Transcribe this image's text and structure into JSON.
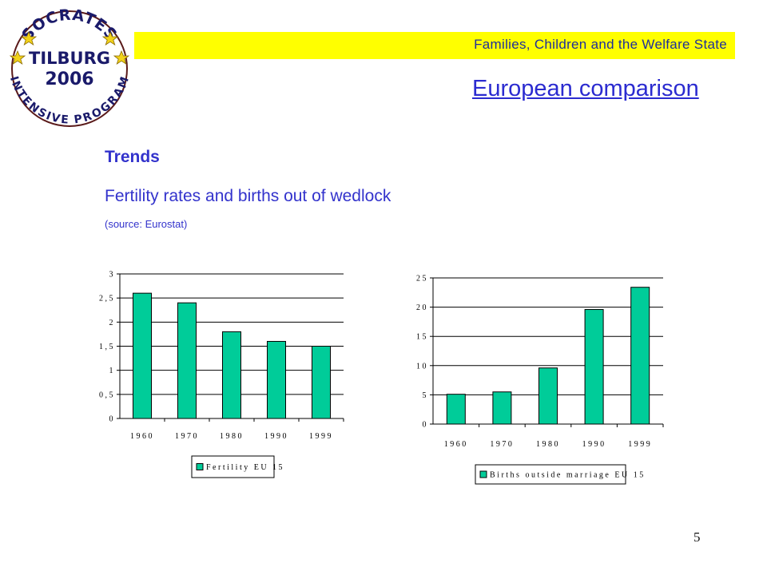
{
  "logo": {
    "top_text": "SOCRATES",
    "city": "TILBURG",
    "year": "2006",
    "bottom_text": "INTENSIVE PROGRAM"
  },
  "header": {
    "banner_text": "Families, Children and the Welfare State",
    "banner_color": "#ffff00"
  },
  "slide": {
    "heading": "European comparison",
    "section": "Trends",
    "subtitle": "Fertility rates and births out of wedlock",
    "source": "(source: Eurostat)",
    "page_number": "5"
  },
  "chart_data": [
    {
      "type": "bar",
      "categories": [
        "1960",
        "1970",
        "1980",
        "1990",
        "1999"
      ],
      "series": [
        {
          "name": "Fertility EU 15",
          "values": [
            2.6,
            2.4,
            1.8,
            1.6,
            1.5
          ]
        }
      ],
      "ylim": [
        0,
        3
      ],
      "yticks": [
        "0",
        "0,5",
        "1",
        "1,5",
        "2",
        "2,5",
        "3"
      ],
      "grid": true,
      "legend_position": "bottom",
      "bar_color": "#00cc99"
    },
    {
      "type": "bar",
      "categories": [
        "1960",
        "1970",
        "1980",
        "1990",
        "1999"
      ],
      "series": [
        {
          "name": "Births outside marriage EU 15",
          "values": [
            5.1,
            5.5,
            9.6,
            19.6,
            23.4
          ]
        }
      ],
      "ylim": [
        0,
        25
      ],
      "yticks": [
        "0",
        "5",
        "10",
        "15",
        "20",
        "25"
      ],
      "grid": true,
      "legend_position": "bottom",
      "bar_color": "#00cc99"
    }
  ]
}
